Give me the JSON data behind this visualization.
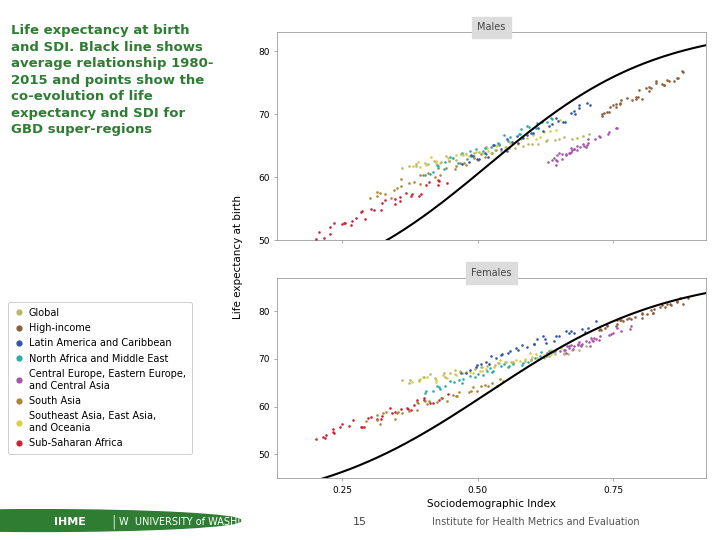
{
  "subplot_titles": [
    "Males",
    "Females"
  ],
  "xlabel": "Sociodemographic Index",
  "ylabel": "Life expectancy at birth",
  "background_color": "#ffffff",
  "plot_bg": "#ffffff",
  "title_bg": "#e8e8e8",
  "legend_entries": [
    {
      "label": "Global",
      "color": "#b8b86a"
    },
    {
      "label": "High-income",
      "color": "#8b5e3c"
    },
    {
      "label": "Latin America and Caribbean",
      "color": "#3355aa"
    },
    {
      "label": "North Africa and Middle East",
      "color": "#2aacaa"
    },
    {
      "label": "Central Europe, Eastern Europe,\nand Central Asia",
      "color": "#aa55aa"
    },
    {
      "label": "South Asia",
      "color": "#aa8833"
    },
    {
      "label": "Southeast Asia, East Asia,\nand Oceania",
      "color": "#ddcc44"
    },
    {
      "label": "Sub-Saharan Africa",
      "color": "#cc2233"
    }
  ],
  "male_ylim": [
    50,
    83
  ],
  "female_ylim": [
    45,
    87
  ],
  "male_yticks": [
    50,
    60,
    70,
    80
  ],
  "female_yticks": [
    50,
    60,
    70,
    80
  ],
  "xticks": [
    0.25,
    0.5,
    0.75
  ],
  "xlim": [
    0.13,
    0.92
  ]
}
